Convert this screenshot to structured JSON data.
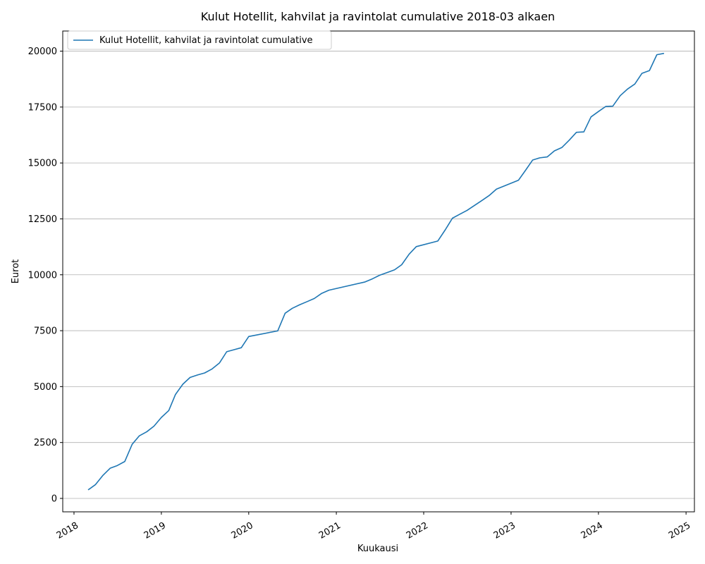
{
  "chart_data": {
    "type": "line",
    "title": "Kulut Hotellit, kahvilat ja ravintolat cumulative 2018-03 alkaen",
    "xlabel": "Kuukausi",
    "ylabel": "Eurot",
    "xlim": [
      "2017-11-15",
      "2025-02-05"
    ],
    "ylim": [
      -600,
      20900
    ],
    "x_ticks": [
      "2018",
      "2019",
      "2020",
      "2021",
      "2022",
      "2023",
      "2024",
      "2025"
    ],
    "y_ticks": [
      0,
      2500,
      5000,
      7500,
      10000,
      12500,
      15000,
      17500,
      20000
    ],
    "y_tick_labels": [
      "0",
      "2500",
      "5000",
      "7500",
      "10000",
      "12500",
      "15000",
      "17500",
      "20000"
    ],
    "grid": "horizontal",
    "legend_position": "top-left",
    "colors": {
      "series": "#1f77b4",
      "grid": "#b0b0b0",
      "axes": "#000000"
    },
    "series": [
      {
        "name": "Kulut Hotellit, kahvilat ja ravintolat cumulative",
        "points": [
          [
            "2018-03",
            380
          ],
          [
            "2018-04",
            620
          ],
          [
            "2018-05",
            1020
          ],
          [
            "2018-06",
            1350
          ],
          [
            "2018-07",
            1470
          ],
          [
            "2018-08",
            1650
          ],
          [
            "2018-09",
            2420
          ],
          [
            "2018-10",
            2800
          ],
          [
            "2018-11",
            2980
          ],
          [
            "2018-12",
            3230
          ],
          [
            "2019-01",
            3620
          ],
          [
            "2019-02",
            3930
          ],
          [
            "2019-03",
            4650
          ],
          [
            "2019-04",
            5110
          ],
          [
            "2019-05",
            5410
          ],
          [
            "2019-06",
            5520
          ],
          [
            "2019-07",
            5610
          ],
          [
            "2019-08",
            5790
          ],
          [
            "2019-09",
            6060
          ],
          [
            "2019-10",
            6560
          ],
          [
            "2019-11",
            6650
          ],
          [
            "2019-12",
            6740
          ],
          [
            "2020-01",
            7240
          ],
          [
            "2020-05",
            7490
          ],
          [
            "2020-06",
            8280
          ],
          [
            "2020-07",
            8500
          ],
          [
            "2020-08",
            8660
          ],
          [
            "2020-09",
            8800
          ],
          [
            "2020-10",
            8940
          ],
          [
            "2020-11",
            9170
          ],
          [
            "2020-12",
            9310
          ],
          [
            "2021-05",
            9680
          ],
          [
            "2021-06",
            9820
          ],
          [
            "2021-07",
            9980
          ],
          [
            "2021-08",
            10100
          ],
          [
            "2021-09",
            10220
          ],
          [
            "2021-10",
            10450
          ],
          [
            "2021-11",
            10920
          ],
          [
            "2021-12",
            11260
          ],
          [
            "2022-03",
            11510
          ],
          [
            "2022-04",
            12010
          ],
          [
            "2022-05",
            12530
          ],
          [
            "2022-06",
            12710
          ],
          [
            "2022-07",
            12880
          ],
          [
            "2022-08",
            13100
          ],
          [
            "2022-09",
            13320
          ],
          [
            "2022-10",
            13540
          ],
          [
            "2022-11",
            13830
          ],
          [
            "2023-02",
            14230
          ],
          [
            "2023-03",
            14650
          ],
          [
            "2023-04",
            15130
          ],
          [
            "2023-05",
            15230
          ],
          [
            "2023-06",
            15270
          ],
          [
            "2023-07",
            15540
          ],
          [
            "2023-08",
            15690
          ],
          [
            "2023-09",
            16020
          ],
          [
            "2023-10",
            16370
          ],
          [
            "2023-11",
            16390
          ],
          [
            "2023-12",
            17060
          ],
          [
            "2024-01",
            17300
          ],
          [
            "2024-02",
            17530
          ],
          [
            "2024-03",
            17540
          ],
          [
            "2024-04",
            18010
          ],
          [
            "2024-05",
            18300
          ],
          [
            "2024-06",
            18530
          ],
          [
            "2024-07",
            19010
          ],
          [
            "2024-08",
            19130
          ],
          [
            "2024-09",
            19840
          ],
          [
            "2024-10",
            19900
          ]
        ]
      }
    ]
  }
}
